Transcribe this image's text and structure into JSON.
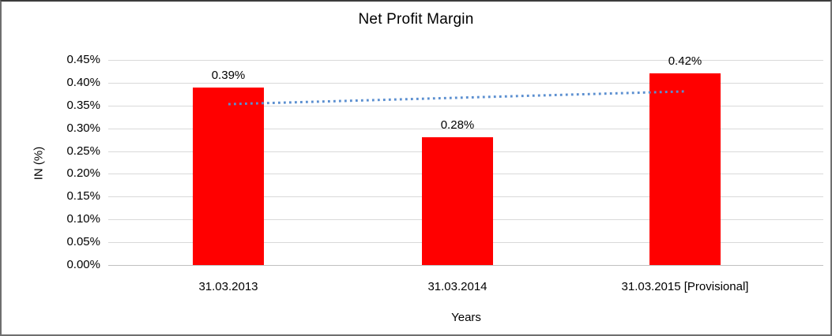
{
  "window": {
    "background": "#ffffff",
    "border_color": "#6f6f6f"
  },
  "chart_data": {
    "type": "bar",
    "title": "Net Profit Margin",
    "xlabel": "Years",
    "ylabel": "IN (%)",
    "categories": [
      "31.03.2013",
      "31.03.2014",
      "31.03.2015 [Provisional]"
    ],
    "values": [
      0.39,
      0.28,
      0.42
    ],
    "value_labels": [
      "0.39%",
      "0.28%",
      "0.42%"
    ],
    "y_ticks": [
      "0.45%",
      "0.40%",
      "0.35%",
      "0.30%",
      "0.25%",
      "0.20%",
      "0.15%",
      "0.10%",
      "0.05%",
      "0.00%"
    ],
    "ylim": [
      0,
      0.45
    ],
    "grid": true,
    "legend": "none",
    "bar_color": "#ff0000",
    "gridline_color": "#d9d9d9",
    "axisline_color": "#c0c0c0",
    "trendline": {
      "type": "linear",
      "style": "dotted",
      "color": "#5b8fd0",
      "start_value": 0.353,
      "end_value": 0.381
    }
  }
}
